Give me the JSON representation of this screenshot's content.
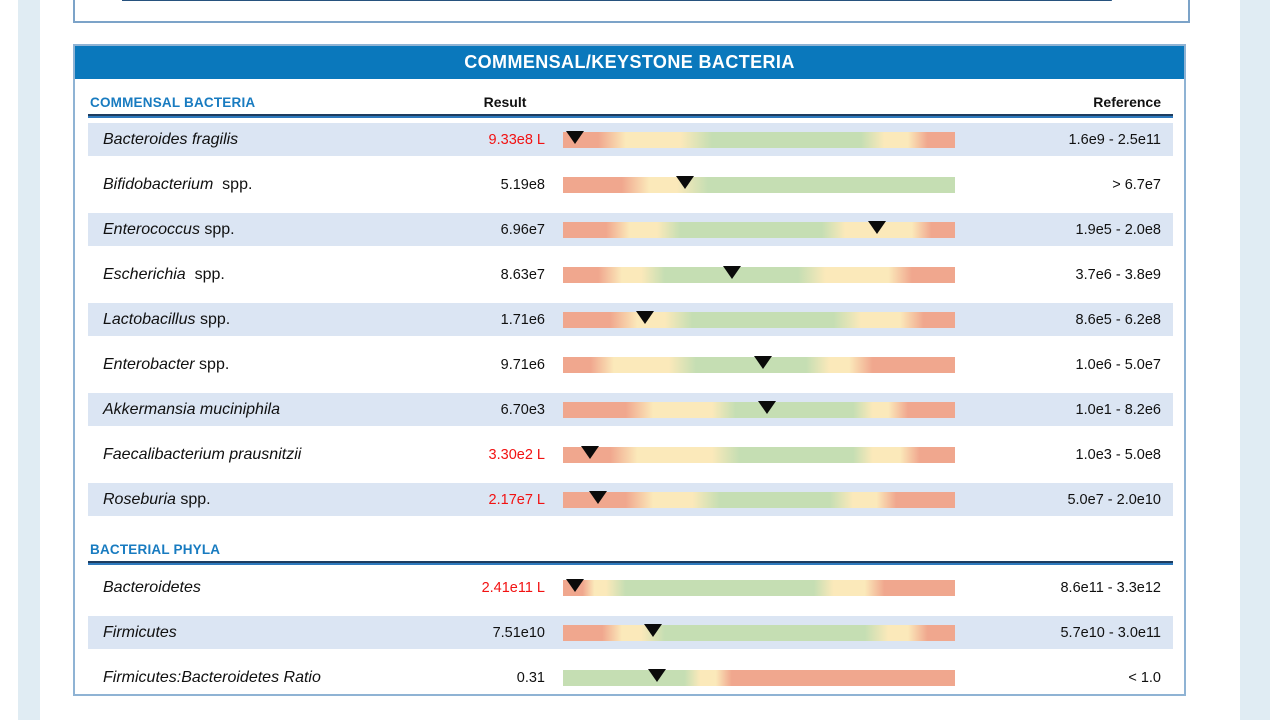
{
  "title": "COMMENSAL/KEYSTONE BACTERIA",
  "columns": {
    "result": "Result",
    "reference": "Reference"
  },
  "palette": {
    "low": "#f0a78e",
    "mid": "#fbe9ba",
    "ok": "#c5deb3",
    "marker": "#0b0b0b",
    "band_blue": "#0a78bc",
    "row_shade": "#dbe5f3",
    "flag_red": "#f21212",
    "heading_blue": "#187bc0"
  },
  "sections": [
    {
      "heading": "COMMENSAL BACTERIA",
      "rows": [
        {
          "name_italic": "Bacteroides fragilis",
          "name_regular": "",
          "result": "9.33e8",
          "flag": "L",
          "reference": "1.6e9 - 2.5e11",
          "marker_pct": 3,
          "bands": [
            [
              "low",
              0
            ],
            [
              "low",
              9
            ],
            [
              "mid",
              16
            ],
            [
              "mid",
              30
            ],
            [
              "ok",
              38
            ],
            [
              "ok",
              76
            ],
            [
              "mid",
              82
            ],
            [
              "mid",
              88
            ],
            [
              "low",
              93
            ],
            [
              "low",
              100
            ]
          ]
        },
        {
          "name_italic": "Bifidobacterium",
          "name_regular": "  spp.",
          "result": "5.19e8",
          "flag": "",
          "reference": "> 6.7e7",
          "marker_pct": 31,
          "bands": [
            [
              "low",
              0
            ],
            [
              "low",
              15
            ],
            [
              "mid",
              22
            ],
            [
              "mid",
              29
            ],
            [
              "ok",
              37
            ],
            [
              "ok",
              100
            ]
          ]
        },
        {
          "name_italic": "Enterococcus",
          "name_regular": " spp.",
          "result": "6.96e7",
          "flag": "",
          "reference": "1.9e5 - 2.0e8",
          "marker_pct": 80,
          "bands": [
            [
              "low",
              0
            ],
            [
              "low",
              11
            ],
            [
              "mid",
              17
            ],
            [
              "mid",
              24
            ],
            [
              "ok",
              30
            ],
            [
              "ok",
              66
            ],
            [
              "mid",
              72
            ],
            [
              "mid",
              89
            ],
            [
              "low",
              94
            ],
            [
              "low",
              100
            ]
          ]
        },
        {
          "name_italic": "Escherichia",
          "name_regular": "  spp.",
          "result": "8.63e7",
          "flag": "",
          "reference": "3.7e6 - 3.8e9",
          "marker_pct": 43,
          "bands": [
            [
              "low",
              0
            ],
            [
              "low",
              9
            ],
            [
              "mid",
              15
            ],
            [
              "mid",
              20
            ],
            [
              "ok",
              26
            ],
            [
              "ok",
              60
            ],
            [
              "mid",
              67
            ],
            [
              "mid",
              83
            ],
            [
              "low",
              89
            ],
            [
              "low",
              100
            ]
          ]
        },
        {
          "name_italic": "Lactobacillus",
          "name_regular": " spp.",
          "result": "1.71e6",
          "flag": "",
          "reference": "8.6e5 - 6.2e8",
          "marker_pct": 21,
          "bands": [
            [
              "low",
              0
            ],
            [
              "low",
              12
            ],
            [
              "mid",
              19
            ],
            [
              "mid",
              26
            ],
            [
              "ok",
              33
            ],
            [
              "ok",
              69
            ],
            [
              "mid",
              76
            ],
            [
              "mid",
              86
            ],
            [
              "low",
              92
            ],
            [
              "low",
              100
            ]
          ]
        },
        {
          "name_italic": "Enterobacter",
          "name_regular": " spp.",
          "result": "9.71e6",
          "flag": "",
          "reference": "1.0e6 - 5.0e7",
          "marker_pct": 51,
          "bands": [
            [
              "low",
              0
            ],
            [
              "low",
              7
            ],
            [
              "mid",
              13
            ],
            [
              "mid",
              27
            ],
            [
              "ok",
              34
            ],
            [
              "ok",
              62
            ],
            [
              "mid",
              68
            ],
            [
              "mid",
              73
            ],
            [
              "low",
              79
            ],
            [
              "low",
              100
            ]
          ]
        },
        {
          "name_italic": "Akkermansia muciniphila",
          "name_regular": "",
          "result": "6.70e3",
          "flag": "",
          "reference": "1.0e1 - 8.2e6",
          "marker_pct": 52,
          "bands": [
            [
              "low",
              0
            ],
            [
              "low",
              16
            ],
            [
              "mid",
              23
            ],
            [
              "mid",
              38
            ],
            [
              "ok",
              44
            ],
            [
              "ok",
              74
            ],
            [
              "mid",
              79
            ],
            [
              "mid",
              83
            ],
            [
              "low",
              88
            ],
            [
              "low",
              100
            ]
          ]
        },
        {
          "name_italic": "Faecalibacterium prausnitzii",
          "name_regular": "",
          "result": "3.30e2",
          "flag": "L",
          "reference": "1.0e3 - 5.0e8",
          "marker_pct": 7,
          "bands": [
            [
              "low",
              0
            ],
            [
              "low",
              12
            ],
            [
              "mid",
              19
            ],
            [
              "mid",
              38
            ],
            [
              "ok",
              45
            ],
            [
              "ok",
              74
            ],
            [
              "mid",
              79
            ],
            [
              "mid",
              86
            ],
            [
              "low",
              91
            ],
            [
              "low",
              100
            ]
          ]
        },
        {
          "name_italic": "Roseburia",
          "name_regular": " spp.",
          "result": "2.17e7",
          "flag": "L",
          "reference": "5.0e7 - 2.0e10",
          "marker_pct": 9,
          "bands": [
            [
              "low",
              0
            ],
            [
              "low",
              16
            ],
            [
              "mid",
              23
            ],
            [
              "mid",
              33
            ],
            [
              "ok",
              40
            ],
            [
              "ok",
              68
            ],
            [
              "mid",
              74
            ],
            [
              "mid",
              80
            ],
            [
              "low",
              85
            ],
            [
              "low",
              100
            ]
          ]
        }
      ]
    },
    {
      "heading": "BACTERIAL PHYLA",
      "rows": [
        {
          "name_italic": "Bacteroidetes",
          "name_regular": "",
          "result": "2.41e11",
          "flag": "L",
          "reference": "8.6e11 - 3.3e12",
          "marker_pct": 3,
          "bands": [
            [
              "low",
              0
            ],
            [
              "low",
              5
            ],
            [
              "mid",
              8
            ],
            [
              "mid",
              11
            ],
            [
              "ok",
              16
            ],
            [
              "ok",
              64
            ],
            [
              "mid",
              69
            ],
            [
              "mid",
              77
            ],
            [
              "low",
              82
            ],
            [
              "low",
              100
            ]
          ]
        },
        {
          "name_italic": "Firmicutes",
          "name_regular": "",
          "result": "7.51e10",
          "flag": "",
          "reference": "5.7e10 - 3.0e11",
          "marker_pct": 23,
          "bands": [
            [
              "low",
              0
            ],
            [
              "low",
              10
            ],
            [
              "mid",
              15
            ],
            [
              "mid",
              20
            ],
            [
              "ok",
              26
            ],
            [
              "ok",
              77
            ],
            [
              "mid",
              83
            ],
            [
              "mid",
              88
            ],
            [
              "low",
              93
            ],
            [
              "low",
              100
            ]
          ]
        },
        {
          "name_italic": "Firmicutes:Bacteroidetes Ratio",
          "name_regular": "",
          "result": "0.31",
          "flag": "",
          "reference": "< 1.0",
          "marker_pct": 24,
          "bands": [
            [
              "ok",
              0
            ],
            [
              "ok",
              31
            ],
            [
              "mid",
              35
            ],
            [
              "mid",
              39
            ],
            [
              "low",
              43
            ],
            [
              "low",
              100
            ]
          ]
        }
      ]
    }
  ]
}
